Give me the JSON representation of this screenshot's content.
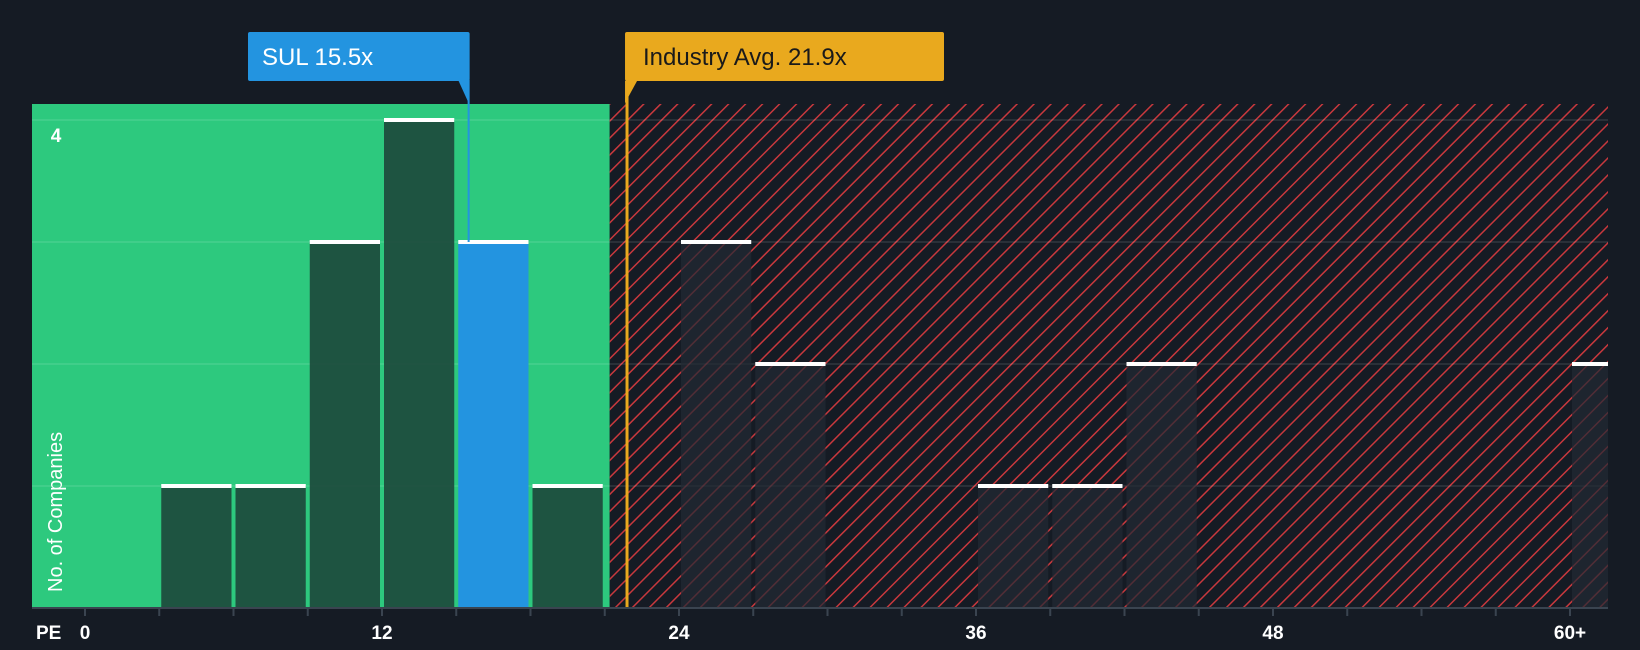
{
  "chart_data": {
    "type": "bar",
    "title": "",
    "xlabel": "PE",
    "ylabel": "No. of Companies",
    "xlim": [
      0,
      61
    ],
    "ylim": [
      0,
      4.15
    ],
    "x_ticks": [
      {
        "value": 0,
        "label": "0"
      },
      {
        "value": 12,
        "label": "12"
      },
      {
        "value": 24,
        "label": "24"
      },
      {
        "value": 36,
        "label": "36"
      },
      {
        "value": 48,
        "label": "48"
      },
      {
        "value": 60,
        "label": "60+"
      }
    ],
    "y_ticks": [
      {
        "value": 4,
        "label": "4"
      }
    ],
    "bin_width": 3,
    "bars": [
      {
        "x0": 3,
        "x1": 6,
        "count": 1,
        "highlight": false
      },
      {
        "x0": 6,
        "x1": 9,
        "count": 1,
        "highlight": false
      },
      {
        "x0": 9,
        "x1": 12,
        "count": 3,
        "highlight": false
      },
      {
        "x0": 12,
        "x1": 15,
        "count": 4,
        "highlight": false
      },
      {
        "x0": 15,
        "x1": 18,
        "count": 3,
        "highlight": true
      },
      {
        "x0": 18,
        "x1": 21,
        "count": 1,
        "highlight": false
      },
      {
        "x0": 24,
        "x1": 27,
        "count": 3,
        "highlight": false
      },
      {
        "x0": 27,
        "x1": 30,
        "count": 2,
        "highlight": false
      },
      {
        "x0": 36,
        "x1": 39,
        "count": 1,
        "highlight": false
      },
      {
        "x0": 39,
        "x1": 42,
        "count": 1,
        "highlight": false
      },
      {
        "x0": 42,
        "x1": 45,
        "count": 2,
        "highlight": false
      },
      {
        "x0": 60,
        "x1": 63,
        "count": 2,
        "highlight": false
      }
    ],
    "company": {
      "label": "SUL 15.5x",
      "value": 15.5
    },
    "industry_avg": {
      "label": "Industry Avg. 21.9x",
      "value": 21.9
    },
    "fair_zone_end": 21.2
  },
  "colors": {
    "background": "#151b24",
    "fair_zone": "#2dc97e",
    "overvalued_zone": "#151b24",
    "hatch": "#c8383d",
    "bar_fill": "#1d4a3c",
    "bar_fill_overvalued": "#232a33",
    "bar_top": "#ffffff",
    "highlight": "#2394e0",
    "industry": "#e9a91e",
    "grid": "#ffffff",
    "axis": "#3a4450",
    "text": "#ffffff"
  }
}
